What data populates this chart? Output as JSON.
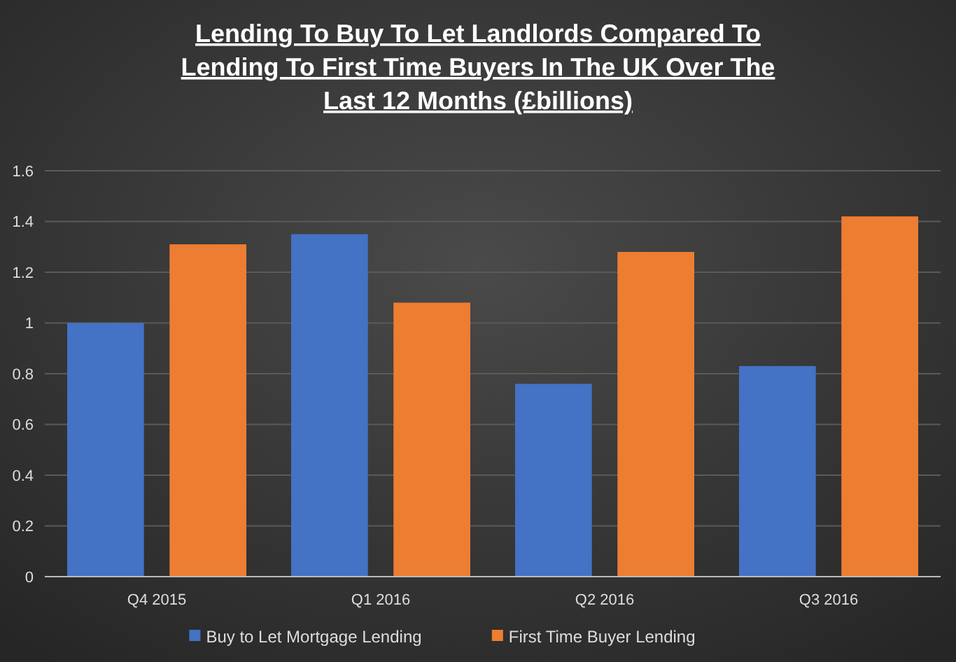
{
  "chart_data": {
    "type": "bar",
    "title": "Lending To Buy To Let Landlords Compared To Lending To First Time Buyers In The UK Over The Last 12 Months (£billions)",
    "categories": [
      "Q4 2015",
      "Q1 2016",
      "Q2 2016",
      "Q3 2016"
    ],
    "series": [
      {
        "name": "Buy to Let Mortgage Lending",
        "color": "#4472c4",
        "values": [
          1.0,
          1.35,
          0.76,
          0.83
        ]
      },
      {
        "name": "First Time Buyer Lending",
        "color": "#ed7d31",
        "values": [
          1.31,
          1.08,
          1.28,
          1.42
        ]
      }
    ],
    "ylim": [
      0,
      1.6
    ],
    "yticks": [
      0,
      0.2,
      0.4,
      0.6,
      0.8,
      1,
      1.2,
      1.4,
      1.6
    ],
    "grid": "y",
    "legend": "bottom"
  }
}
